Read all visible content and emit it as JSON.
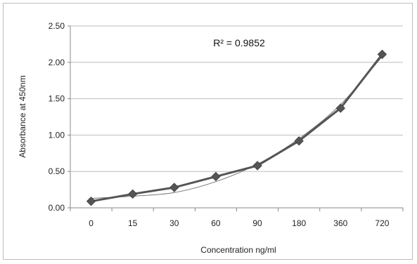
{
  "chart_data": {
    "type": "line",
    "categories": [
      "0",
      "15",
      "30",
      "60",
      "90",
      "180",
      "360",
      "720"
    ],
    "series": [
      {
        "values": [
          0.09,
          0.19,
          0.28,
          0.43,
          0.58,
          0.92,
          1.37,
          2.11
        ],
        "marker": "diamond",
        "color": "#555555"
      }
    ],
    "trendline": {
      "kind": "exponential",
      "values": [
        0.13,
        0.16,
        0.21,
        0.36,
        0.6,
        0.95,
        1.42,
        2.08
      ],
      "color": "#777777"
    },
    "annotation": "R² = 0.9852",
    "xlabel": "Concentration ng/ml",
    "ylabel": "Absorbance at 450nm",
    "ylim": [
      0,
      2.5
    ],
    "yticks": [
      "0.00",
      "0.50",
      "1.00",
      "1.50",
      "2.00",
      "2.50"
    ],
    "grid": true,
    "legend": "none"
  }
}
